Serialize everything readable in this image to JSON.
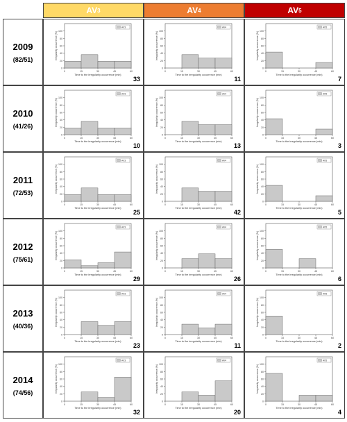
{
  "columns": [
    {
      "label": "AV",
      "sub": "3",
      "color": "#FFD966"
    },
    {
      "label": "AV",
      "sub": "4",
      "color": "#ED7D31"
    },
    {
      "label": "AV",
      "sub": "5",
      "color": "#C00000"
    }
  ],
  "rows": [
    {
      "year": "2009",
      "counts": "(82/51)"
    },
    {
      "year": "2010",
      "counts": "(41/26)"
    },
    {
      "year": "2011",
      "counts": "(72/53)"
    },
    {
      "year": "2012",
      "counts": "(75/61)"
    },
    {
      "year": "2013",
      "counts": "(40/36)"
    },
    {
      "year": "2014",
      "counts": "(74/56)"
    }
  ],
  "axis_text": {
    "xlabel": "Time to the irregularity occurrence (min)",
    "ylabel": "Irregularity occurrence (%)",
    "xticks": [
      "0",
      "15",
      "30",
      "45",
      "60"
    ],
    "yticks": [
      "0",
      "20",
      "40",
      "60",
      "80",
      "100"
    ]
  },
  "chart_data": [
    {
      "type": "bar",
      "panel": "2009-AV3",
      "series_label": "AV3",
      "x": [
        7.5,
        22.5,
        37.5,
        52.5
      ],
      "values": [
        18,
        36,
        18,
        18
      ],
      "ylim": [
        0,
        120
      ],
      "xlim": [
        0,
        60
      ],
      "n": "33"
    },
    {
      "type": "bar",
      "panel": "2009-AV4",
      "series_label": "AV4",
      "x": [
        7.5,
        22.5,
        37.5,
        52.5
      ],
      "values": [
        0,
        36,
        27,
        27
      ],
      "ylim": [
        0,
        120
      ],
      "xlim": [
        0,
        60
      ],
      "n": "11"
    },
    {
      "type": "bar",
      "panel": "2009-AV5",
      "series_label": "AV5",
      "x": [
        7.5,
        22.5,
        37.5,
        52.5
      ],
      "values": [
        43,
        0,
        0,
        15
      ],
      "ylim": [
        0,
        120
      ],
      "xlim": [
        0,
        60
      ],
      "n": "7"
    },
    {
      "type": "bar",
      "panel": "2010-AV3",
      "series_label": "AV3",
      "x": [
        7.5,
        22.5,
        37.5,
        52.5
      ],
      "values": [
        18,
        36,
        18,
        18
      ],
      "ylim": [
        0,
        120
      ],
      "xlim": [
        0,
        60
      ],
      "n": "10"
    },
    {
      "type": "bar",
      "panel": "2010-AV4",
      "series_label": "AV4",
      "x": [
        7.5,
        22.5,
        37.5,
        52.5
      ],
      "values": [
        0,
        36,
        27,
        27
      ],
      "ylim": [
        0,
        120
      ],
      "xlim": [
        0,
        60
      ],
      "n": "13"
    },
    {
      "type": "bar",
      "panel": "2010-AV5",
      "series_label": "AV5",
      "x": [
        7.5,
        22.5,
        37.5,
        52.5
      ],
      "values": [
        43,
        0,
        0,
        15
      ],
      "ylim": [
        0,
        120
      ],
      "xlim": [
        0,
        60
      ],
      "n": "3"
    },
    {
      "type": "bar",
      "panel": "2011-AV3",
      "series_label": "AV3",
      "x": [
        7.5,
        22.5,
        37.5,
        52.5
      ],
      "values": [
        18,
        36,
        18,
        18
      ],
      "ylim": [
        0,
        120
      ],
      "xlim": [
        0,
        60
      ],
      "n": "25"
    },
    {
      "type": "bar",
      "panel": "2011-AV4",
      "series_label": "AV4",
      "x": [
        7.5,
        22.5,
        37.5,
        52.5
      ],
      "values": [
        0,
        36,
        27,
        27
      ],
      "ylim": [
        0,
        120
      ],
      "xlim": [
        0,
        60
      ],
      "n": "42"
    },
    {
      "type": "bar",
      "panel": "2011-AV5",
      "series_label": "AV5",
      "x": [
        7.5,
        22.5,
        37.5,
        52.5
      ],
      "values": [
        43,
        0,
        0,
        15
      ],
      "ylim": [
        0,
        120
      ],
      "xlim": [
        0,
        60
      ],
      "n": "5"
    },
    {
      "type": "bar",
      "panel": "2012-AV3",
      "series_label": "AV3",
      "x": [
        7.5,
        22.5,
        37.5,
        52.5
      ],
      "values": [
        22,
        6,
        14,
        43
      ],
      "ylim": [
        0,
        120
      ],
      "xlim": [
        0,
        60
      ],
      "n": "29"
    },
    {
      "type": "bar",
      "panel": "2012-AV4",
      "series_label": "AV4",
      "x": [
        7.5,
        22.5,
        37.5,
        52.5
      ],
      "values": [
        0,
        25,
        38,
        25
      ],
      "ylim": [
        0,
        120
      ],
      "xlim": [
        0,
        60
      ],
      "n": "26"
    },
    {
      "type": "bar",
      "panel": "2012-AV5",
      "series_label": "AV5",
      "x": [
        7.5,
        22.5,
        37.5,
        52.5
      ],
      "values": [
        50,
        0,
        25,
        0
      ],
      "ylim": [
        0,
        120
      ],
      "xlim": [
        0,
        60
      ],
      "n": "6"
    },
    {
      "type": "bar",
      "panel": "2013-AV3",
      "series_label": "AV3",
      "x": [
        7.5,
        22.5,
        37.5,
        52.5
      ],
      "values": [
        0,
        35,
        25,
        35
      ],
      "ylim": [
        0,
        120
      ],
      "xlim": [
        0,
        60
      ],
      "n": "23"
    },
    {
      "type": "bar",
      "panel": "2013-AV4",
      "series_label": "AV4",
      "x": [
        7.5,
        22.5,
        37.5,
        52.5
      ],
      "values": [
        0,
        28,
        18,
        28
      ],
      "ylim": [
        0,
        120
      ],
      "xlim": [
        0,
        60
      ],
      "n": "11"
    },
    {
      "type": "bar",
      "panel": "2013-AV5",
      "series_label": "AV5",
      "x": [
        7.5,
        22.5,
        37.5,
        52.5
      ],
      "values": [
        50,
        0,
        0,
        0
      ],
      "ylim": [
        0,
        120
      ],
      "xlim": [
        0,
        60
      ],
      "n": "2"
    },
    {
      "type": "bar",
      "panel": "2014-AV3",
      "series_label": "AV3",
      "x": [
        7.5,
        22.5,
        37.5,
        52.5
      ],
      "values": [
        0,
        25,
        10,
        65
      ],
      "ylim": [
        0,
        120
      ],
      "xlim": [
        0,
        60
      ],
      "n": "32"
    },
    {
      "type": "bar",
      "panel": "2014-AV4",
      "series_label": "AV4",
      "x": [
        7.5,
        22.5,
        37.5,
        52.5
      ],
      "values": [
        0,
        25,
        16,
        55
      ],
      "ylim": [
        0,
        120
      ],
      "xlim": [
        0,
        60
      ],
      "n": "20"
    },
    {
      "type": "bar",
      "panel": "2014-AV5",
      "series_label": "AV5",
      "x": [
        7.5,
        22.5,
        37.5,
        52.5
      ],
      "values": [
        75,
        0,
        16,
        16
      ],
      "ylim": [
        0,
        120
      ],
      "xlim": [
        0,
        60
      ],
      "n": "4"
    }
  ]
}
